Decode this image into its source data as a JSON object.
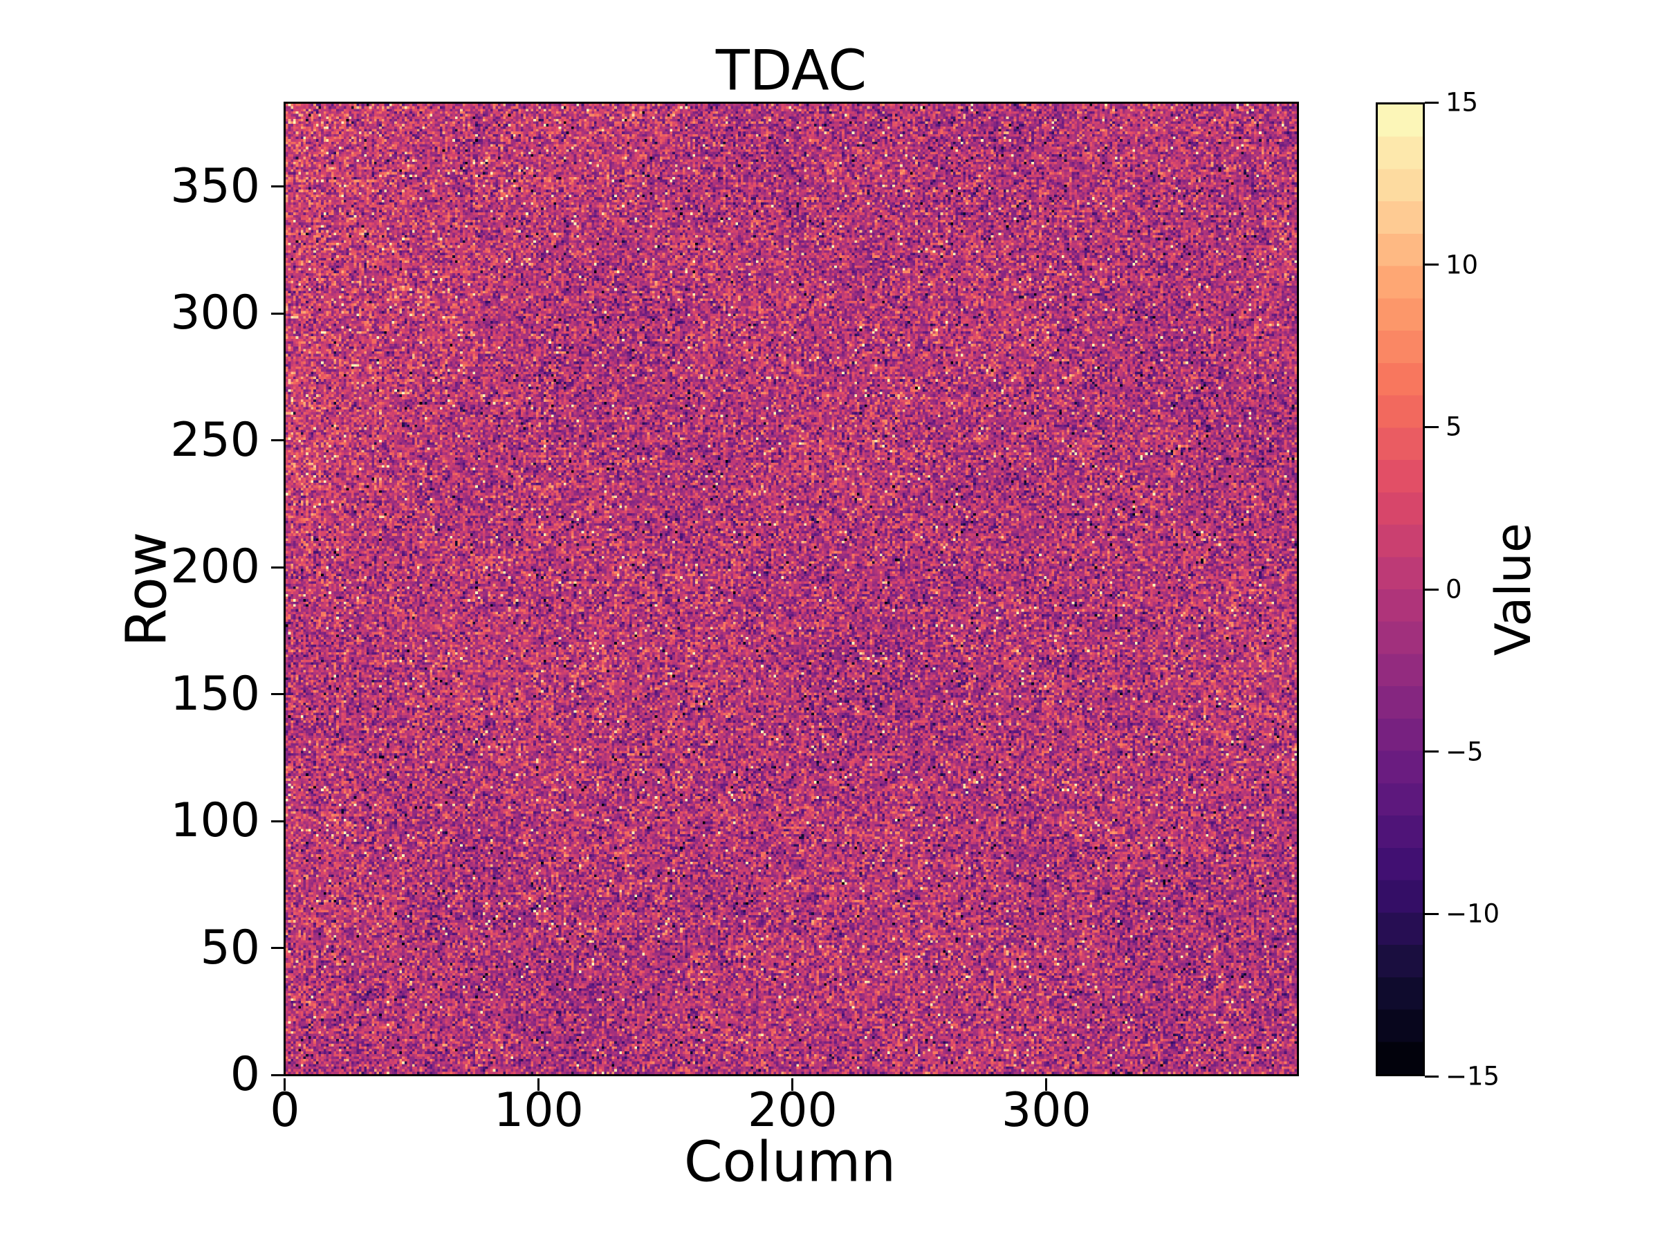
{
  "figure": {
    "background": "#ffffff"
  },
  "chart_data": {
    "type": "heatmap",
    "title": "TDAC",
    "xlabel": "Column",
    "ylabel": "Row",
    "colorbar_label": "Value",
    "n_columns": 400,
    "n_rows": 384,
    "xlim": [
      -0.5,
      399.5
    ],
    "ylim": [
      -0.5,
      383.5
    ],
    "value_range": [
      -15,
      15
    ],
    "x_ticks": [
      0,
      100,
      200,
      300
    ],
    "y_ticks": [
      0,
      50,
      100,
      150,
      200,
      250,
      300,
      350
    ],
    "colorbar_ticks": [
      {
        "value": 15,
        "label": "15"
      },
      {
        "value": 10,
        "label": "10"
      },
      {
        "value": 5,
        "label": "5"
      },
      {
        "value": 0,
        "label": "0"
      },
      {
        "value": -5,
        "label": "−5"
      },
      {
        "value": -10,
        "label": "−10"
      },
      {
        "value": -15,
        "label": "−15"
      }
    ],
    "grid": false,
    "frame_color": "#000000",
    "colormap": {
      "name": "magma",
      "discrete_levels": 30,
      "anchors": [
        [
          0.0,
          0,
          0,
          4
        ],
        [
          0.05,
          8,
          6,
          29
        ],
        [
          0.1,
          20,
          14,
          54
        ],
        [
          0.2,
          59,
          15,
          112
        ],
        [
          0.3,
          100,
          26,
          128
        ],
        [
          0.4,
          140,
          41,
          129
        ],
        [
          0.5,
          183,
          55,
          121
        ],
        [
          0.6,
          222,
          73,
          104
        ],
        [
          0.7,
          247,
          112,
          92
        ],
        [
          0.8,
          254,
          159,
          109
        ],
        [
          0.9,
          254,
          213,
          155
        ],
        [
          1.0,
          252,
          253,
          191
        ]
      ]
    },
    "data_description": "Per-pixel TDAC tuning map, 400 columns × 384 rows. Integer values in [−15, 15]; bulk of pixels near −1 with spread ≈4 (magenta/purple), sparse saturated bright (+12…+15) and dark (−12…−15) outliers, and a mild warm bias toward the upper-left corner.",
    "noise_model": {
      "seed": 20240613,
      "mean": -0.8,
      "std": 3.9,
      "outlier_fraction": 0.012,
      "outlier_positive_share": 0.58,
      "outlier_min_magnitude": 12,
      "warm_corner_amplitude": 2.2,
      "warm_corner_col_scale": 75,
      "warm_corner_row_power": 1.2,
      "blotch_amplitude_1": 0.5,
      "blotch_amplitude_2": 0.4
    }
  }
}
